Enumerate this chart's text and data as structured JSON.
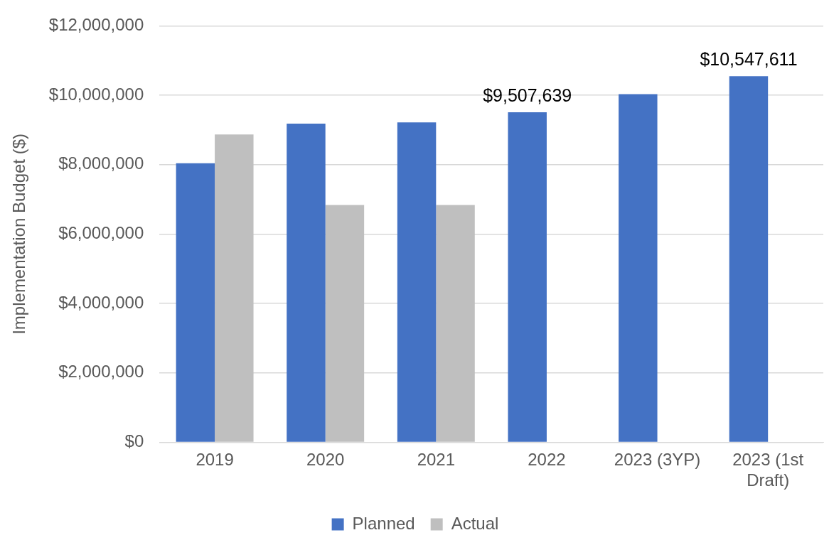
{
  "chart_data": {
    "type": "bar",
    "ylabel": "Implementation Budget ($)",
    "categories": [
      "2019",
      "2020",
      "2021",
      "2022",
      "2023 (3YP)",
      "2023 (1st Draft)"
    ],
    "series": [
      {
        "name": "Planned",
        "color": "#4472c4",
        "values": [
          8040000,
          9180000,
          9220000,
          9507639,
          10030000,
          10547611
        ],
        "value_labels": [
          null,
          null,
          null,
          "$9,507,639",
          null,
          "$10,547,611"
        ]
      },
      {
        "name": "Actual",
        "color": "#bfbfbf",
        "values": [
          8870000,
          6840000,
          6840000,
          null,
          null,
          null
        ]
      }
    ],
    "ylim": [
      0,
      12000000
    ],
    "yticks": [
      {
        "value": 0,
        "label": "$0"
      },
      {
        "value": 2000000,
        "label": "$2,000,000"
      },
      {
        "value": 4000000,
        "label": "$4,000,000"
      },
      {
        "value": 6000000,
        "label": "$6,000,000"
      },
      {
        "value": 8000000,
        "label": "$8,000,000"
      },
      {
        "value": 10000000,
        "label": "$10,000,000"
      },
      {
        "value": 12000000,
        "label": "$12,000,000"
      }
    ],
    "grid": "y",
    "legend": "bottom"
  }
}
